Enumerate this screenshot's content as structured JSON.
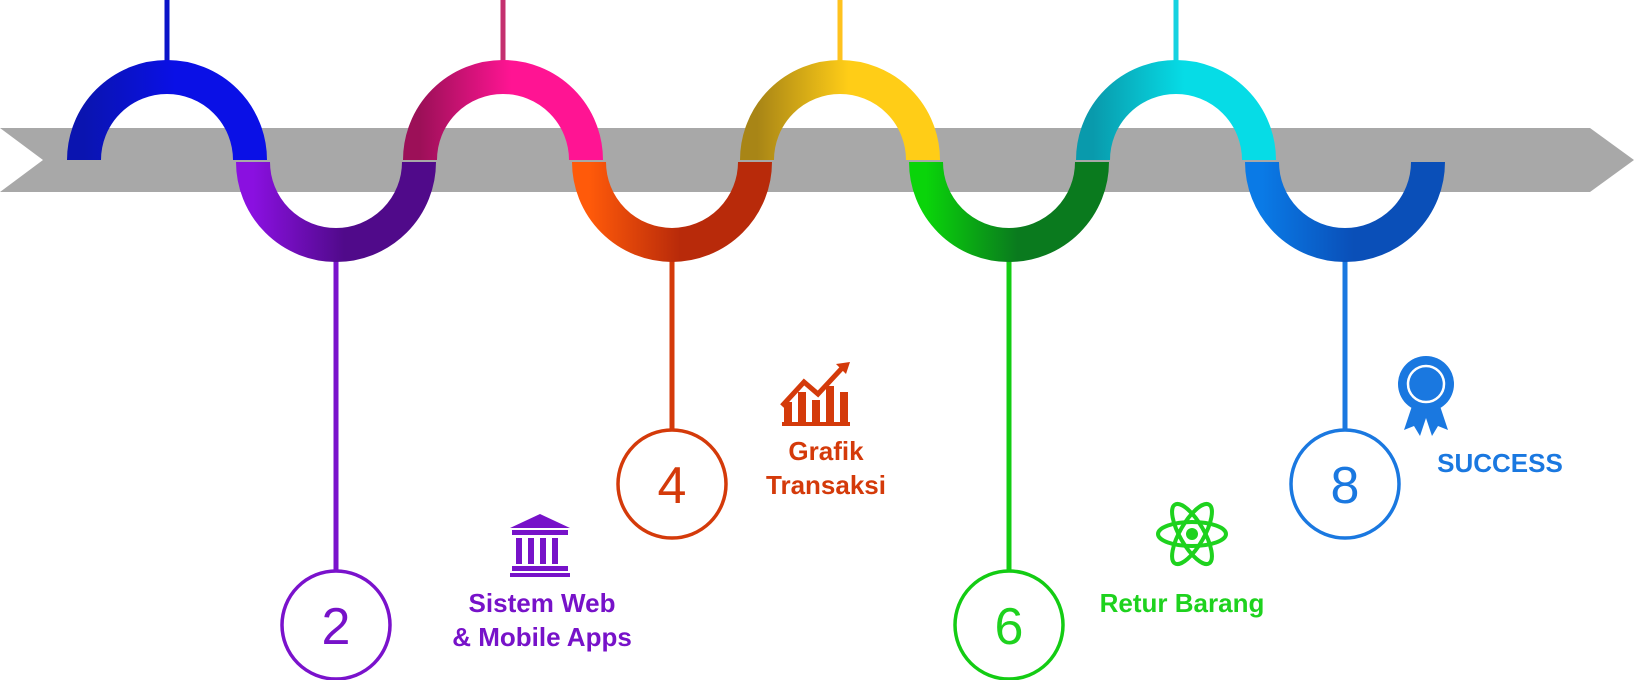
{
  "steps": [
    {
      "number": "2",
      "label_lines": [
        "Sistem Web",
        "& Mobile Apps"
      ],
      "icon": "bank-icon",
      "color": "#7712c9",
      "stroke": "#7a12cc"
    },
    {
      "number": "4",
      "label_lines": [
        "Grafik",
        "Transaksi"
      ],
      "icon": "growth-chart-icon",
      "color": "#d43a0a",
      "stroke": "#d43a0a"
    },
    {
      "number": "6",
      "label_lines": [
        "Retur Barang"
      ],
      "icon": "atom-icon",
      "color": "#1ed21e",
      "stroke": "#13cc13"
    },
    {
      "number": "8",
      "label_lines": [
        "SUCCESS"
      ],
      "icon": "award-ribbon-icon",
      "color": "#1a78e0",
      "stroke": "#1a78e0"
    }
  ],
  "colors": {
    "arrow": "#a8a8a8",
    "top_arcs": [
      {
        "dark": "#0a14b0",
        "light": "#0a10e6"
      },
      {
        "dark": "#9c1058",
        "light": "#ff1493"
      },
      {
        "dark": "#a88516",
        "light": "#ffcd17"
      },
      {
        "dark": "#099aac",
        "light": "#06dce6"
      }
    ],
    "bottom_arcs": [
      {
        "dark": "#500a8a",
        "light": "#8a10e0"
      },
      {
        "dark": "#b82a0a",
        "light": "#ff5a0a"
      },
      {
        "dark": "#0a7a1e",
        "light": "#0ad40a"
      },
      {
        "dark": "#0a4fb8",
        "light": "#0a7ae6"
      }
    ],
    "top_stems": [
      "#0a14c8",
      "#c4306e",
      "#ffc21e",
      "#16d2e0"
    ]
  }
}
